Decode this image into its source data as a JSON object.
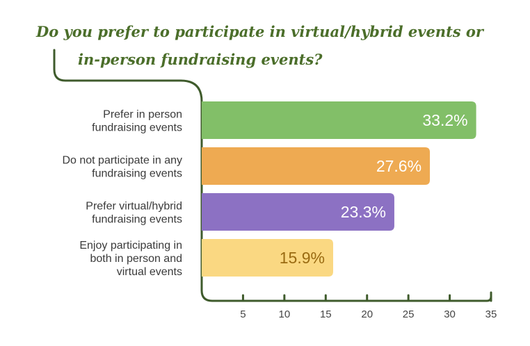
{
  "title": {
    "line1": "Do you prefer to participate in virtual/hybrid events or",
    "line2": "in-person fundraising events?"
  },
  "colors": {
    "title": "#4b6e2a",
    "axis": "#3f5b2c",
    "label": "#3a3a3a"
  },
  "chart_data": {
    "type": "bar",
    "orientation": "horizontal",
    "categories": [
      [
        "Prefer in person",
        "fundraising events"
      ],
      [
        "Do not participate in any",
        "fundraising events"
      ],
      [
        "Prefer virtual/hybrid",
        "fundraising events"
      ],
      [
        "Enjoy participating in",
        "both in person and",
        "virtual events"
      ]
    ],
    "values": [
      33.2,
      27.6,
      23.3,
      15.9
    ],
    "data_labels": [
      "33.2%",
      "27.6%",
      "23.3%",
      "15.9%"
    ],
    "bar_colors": [
      "#82bf68",
      "#eeaa52",
      "#8c71c3",
      "#fad882"
    ],
    "label_colors": [
      "#ffffff",
      "#ffffff",
      "#ffffff",
      "#9a6b12"
    ],
    "xlim": [
      0,
      35
    ],
    "xticks": [
      5,
      10,
      15,
      20,
      25,
      30,
      35
    ],
    "grid": false,
    "legend": "none"
  }
}
